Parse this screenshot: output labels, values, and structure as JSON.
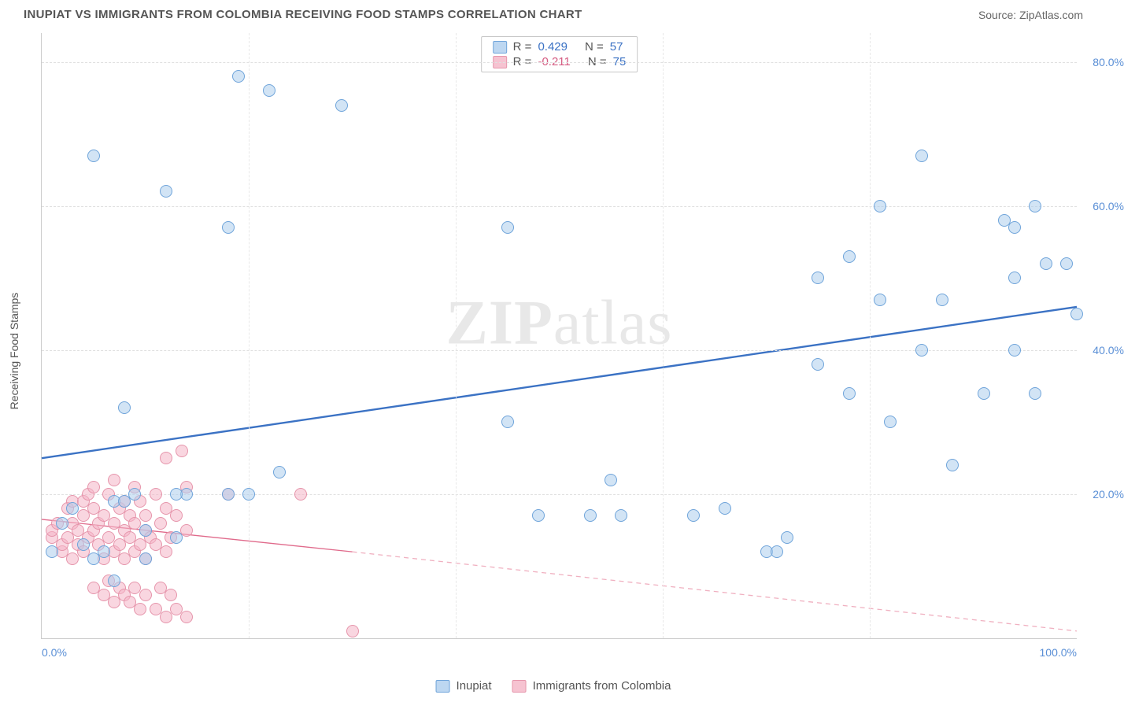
{
  "header": {
    "title": "INUPIAT VS IMMIGRANTS FROM COLOMBIA RECEIVING FOOD STAMPS CORRELATION CHART",
    "source": "Source: ZipAtlas.com"
  },
  "axes": {
    "ylabel": "Receiving Food Stamps",
    "xlim": [
      0,
      100
    ],
    "ylim": [
      0,
      84
    ],
    "ytick_values": [
      20,
      40,
      60,
      80
    ],
    "ytick_labels": [
      "20.0%",
      "40.0%",
      "60.0%",
      "80.0%"
    ],
    "xtick_values": [
      0,
      100
    ],
    "xtick_labels": [
      "0.0%",
      "100.0%"
    ],
    "vgrid_values": [
      20,
      40,
      60,
      80
    ]
  },
  "legend_top": {
    "series_a": {
      "r_label": "R =",
      "r_value": "0.429",
      "n_label": "N =",
      "n_value": "57"
    },
    "series_b": {
      "r_label": "R =",
      "r_value": "-0.211",
      "n_label": "N =",
      "n_value": "75"
    }
  },
  "legend_bottom": {
    "series_a_label": "Inupiat",
    "series_b_label": "Immigrants from Colombia"
  },
  "watermark": {
    "part1": "ZIP",
    "part2": "atlas"
  },
  "style": {
    "marker_radius": 8,
    "series_a_fill": "rgba(173,205,237,0.55)",
    "series_a_stroke": "#6fa4da",
    "series_b_fill": "rgba(244,180,198,0.55)",
    "series_b_stroke": "#e695ab",
    "trend_a_color": "#3b72c4",
    "trend_a_width": 2.4,
    "trend_b_solid_color": "#e06a8b",
    "trend_b_dash_color": "#f0b0c0",
    "trend_b_width": 1.3,
    "grid_color": "#e0e0e0",
    "background_color": "#ffffff",
    "title_color": "#555555",
    "axis_label_color": "#5a8fd6",
    "title_fontsize": 15,
    "tick_fontsize": 14
  },
  "trend_lines": {
    "a": {
      "x1": 0,
      "y1": 25,
      "x2": 100,
      "y2": 46
    },
    "b_solid": {
      "x1": 0,
      "y1": 16.5,
      "x2": 30,
      "y2": 12
    },
    "b_dash": {
      "x1": 30,
      "y1": 12,
      "x2": 100,
      "y2": 1
    }
  },
  "series": {
    "a": [
      [
        5,
        67
      ],
      [
        19,
        78
      ],
      [
        22,
        76
      ],
      [
        29,
        74
      ],
      [
        12,
        62
      ],
      [
        18,
        57
      ],
      [
        85,
        67
      ],
      [
        81,
        60
      ],
      [
        96,
        60
      ],
      [
        93,
        58
      ],
      [
        94,
        57
      ],
      [
        97,
        52
      ],
      [
        99,
        52
      ],
      [
        78,
        53
      ],
      [
        75,
        50
      ],
      [
        94,
        50
      ],
      [
        100,
        45
      ],
      [
        81,
        47
      ],
      [
        87,
        47
      ],
      [
        85,
        40
      ],
      [
        94,
        40
      ],
      [
        91,
        34
      ],
      [
        96,
        34
      ],
      [
        75,
        38
      ],
      [
        78,
        34
      ],
      [
        82,
        30
      ],
      [
        88,
        24
      ],
      [
        63,
        17
      ],
      [
        66,
        18
      ],
      [
        70,
        12
      ],
      [
        71,
        12
      ],
      [
        53,
        17
      ],
      [
        56,
        17
      ],
      [
        55,
        22
      ],
      [
        45,
        30
      ],
      [
        45,
        57
      ],
      [
        48,
        17
      ],
      [
        72,
        14
      ],
      [
        23,
        23
      ],
      [
        18,
        20
      ],
      [
        14,
        20
      ],
      [
        20,
        20
      ],
      [
        8,
        32
      ],
      [
        1,
        12
      ],
      [
        2,
        16
      ],
      [
        3,
        18
      ],
      [
        4,
        13
      ],
      [
        5,
        11
      ],
      [
        6,
        12
      ],
      [
        7,
        8
      ],
      [
        7,
        19
      ],
      [
        8,
        19
      ],
      [
        9,
        20
      ],
      [
        10,
        11
      ],
      [
        10,
        15
      ],
      [
        13,
        14
      ],
      [
        13,
        20
      ]
    ],
    "b": [
      [
        1,
        14
      ],
      [
        1,
        15
      ],
      [
        1.5,
        16
      ],
      [
        2,
        12
      ],
      [
        2,
        13
      ],
      [
        2.5,
        18
      ],
      [
        2.5,
        14
      ],
      [
        3,
        16
      ],
      [
        3,
        11
      ],
      [
        3,
        19
      ],
      [
        3.5,
        15
      ],
      [
        3.5,
        13
      ],
      [
        4,
        17
      ],
      [
        4,
        19
      ],
      [
        4,
        12
      ],
      [
        4.5,
        20
      ],
      [
        4.5,
        14
      ],
      [
        5,
        18
      ],
      [
        5,
        15
      ],
      [
        5,
        21
      ],
      [
        5.5,
        16
      ],
      [
        5.5,
        13
      ],
      [
        6,
        11
      ],
      [
        6,
        17
      ],
      [
        6.5,
        20
      ],
      [
        6.5,
        14
      ],
      [
        7,
        12
      ],
      [
        7,
        22
      ],
      [
        7,
        16
      ],
      [
        7.5,
        18
      ],
      [
        7.5,
        13
      ],
      [
        8,
        15
      ],
      [
        8,
        11
      ],
      [
        8,
        19
      ],
      [
        8.5,
        14
      ],
      [
        8.5,
        17
      ],
      [
        9,
        12
      ],
      [
        9,
        21
      ],
      [
        9,
        16
      ],
      [
        9.5,
        13
      ],
      [
        9.5,
        19
      ],
      [
        10,
        15
      ],
      [
        10,
        17
      ],
      [
        10,
        11
      ],
      [
        10.5,
        14
      ],
      [
        11,
        20
      ],
      [
        11,
        13
      ],
      [
        11.5,
        16
      ],
      [
        12,
        12
      ],
      [
        12,
        18
      ],
      [
        12,
        25
      ],
      [
        12.5,
        14
      ],
      [
        13,
        17
      ],
      [
        13.5,
        26
      ],
      [
        14,
        21
      ],
      [
        14,
        15
      ],
      [
        5,
        7
      ],
      [
        6,
        6
      ],
      [
        6.5,
        8
      ],
      [
        7,
        5
      ],
      [
        7.5,
        7
      ],
      [
        8,
        6
      ],
      [
        8.5,
        5
      ],
      [
        9,
        7
      ],
      [
        9.5,
        4
      ],
      [
        10,
        6
      ],
      [
        11,
        4
      ],
      [
        11.5,
        7
      ],
      [
        12,
        3
      ],
      [
        12.5,
        6
      ],
      [
        13,
        4
      ],
      [
        14,
        3
      ],
      [
        18,
        20
      ],
      [
        25,
        20
      ],
      [
        30,
        1
      ]
    ]
  }
}
